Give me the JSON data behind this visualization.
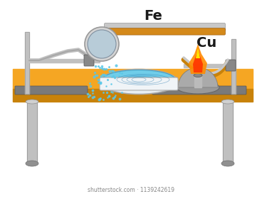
{
  "bg_color": "#ffffff",
  "table_color": "#f5a623",
  "table_dark": "#c8820a",
  "fe_label": "Fe",
  "cu_label": "Cu",
  "shutterstock_text": "shutterstock.com · 1139242619"
}
